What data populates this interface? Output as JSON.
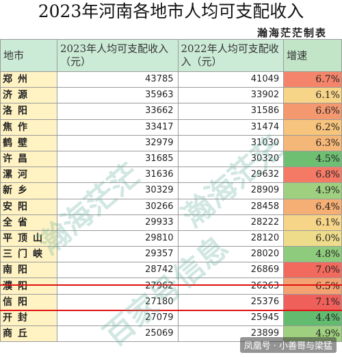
{
  "title": "2023年河南各地市人均可支配收入",
  "subtitle": "瀚海茫茫制表",
  "headers": [
    "地市",
    "2023年人均可支配收入（元）",
    "2022年人均可支配收入（元）",
    "增速"
  ],
  "rows": [
    {
      "city": "郑州",
      "v2023": "43785",
      "v2022": "41049",
      "growth": "6.7%",
      "color": "#f4856a"
    },
    {
      "city": "济源",
      "v2023": "35963",
      "v2022": "33902",
      "growth": "6.1%",
      "color": "#f6d488"
    },
    {
      "city": "洛阳",
      "v2023": "33662",
      "v2022": "31586",
      "growth": "6.6%",
      "color": "#f4986f"
    },
    {
      "city": "焦作",
      "v2023": "33417",
      "v2022": "31474",
      "growth": "6.2%",
      "color": "#f6c47c"
    },
    {
      "city": "鹤壁",
      "v2023": "32979",
      "v2022": "31030",
      "growth": "6.3%",
      "color": "#f5b777"
    },
    {
      "city": "许昌",
      "v2023": "31685",
      "v2022": "30320",
      "growth": "4.5%",
      "color": "#6fbf73"
    },
    {
      "city": "漯河",
      "v2023": "31636",
      "v2022": "29632",
      "growth": "6.8%",
      "color": "#f47a66"
    },
    {
      "city": "新乡",
      "v2023": "30329",
      "v2022": "28909",
      "growth": "4.9%",
      "color": "#9fd07f"
    },
    {
      "city": "安阳",
      "v2023": "30266",
      "v2022": "28458",
      "growth": "6.4%",
      "color": "#f5ae74"
    },
    {
      "city": "全省",
      "v2023": "29933",
      "v2022": "28222",
      "growth": "6.1%",
      "color": "#f6d488"
    },
    {
      "city": "平顶山",
      "v2023": "29810",
      "v2022": "28120",
      "growth": "6.0%",
      "color": "#eedc8a"
    },
    {
      "city": "三门峡",
      "v2023": "29357",
      "v2022": "28020",
      "growth": "4.8%",
      "color": "#8fcb7c"
    },
    {
      "city": "南阳",
      "v2023": "28742",
      "v2022": "26869",
      "growth": "7.0%",
      "color": "#f2695e"
    },
    {
      "city": "濮阳",
      "v2023": "27962",
      "v2022": "26263",
      "growth": "6.5%",
      "color": "#f4a271"
    },
    {
      "city": "信阳",
      "v2023": "27180",
      "v2022": "25376",
      "growth": "7.1%",
      "color": "#f0605b"
    },
    {
      "city": "开封",
      "v2023": "27079",
      "v2022": "25945",
      "growth": "4.4%",
      "color": "#63bb70"
    },
    {
      "city": "商丘",
      "v2023": "25069",
      "v2022": "23899",
      "growth": "4.9%",
      "color": "#9fd07f"
    }
  ],
  "watermarks": [
    "瀚海茫茫",
    "百家号信息",
    "瀚海茫茫"
  ],
  "footer": "凤凰号 · 小善哥与梁猛"
}
